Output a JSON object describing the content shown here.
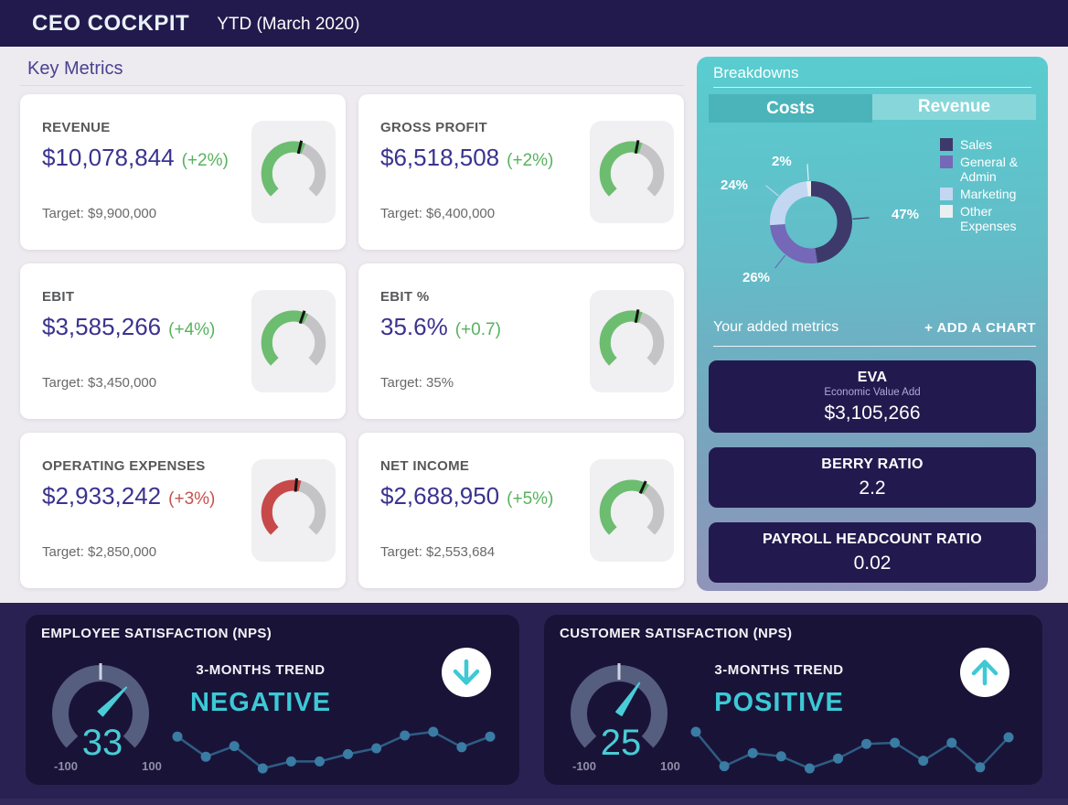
{
  "header": {
    "title": "CEO COCKPIT",
    "subtitle": "YTD (March 2020)"
  },
  "key_metrics": {
    "heading": "Key Metrics",
    "cards": [
      {
        "label": "REVENUE",
        "value": "$10,078,844",
        "change": "(+2%)",
        "change_color": "#57b25e",
        "target": "Target: $9,900,000",
        "gauge_color": "#6cbd70",
        "gauge_fill": 0.58
      },
      {
        "label": "GROSS PROFIT",
        "value": "$6,518,508",
        "change": "(+2%)",
        "change_color": "#57b25e",
        "target": "Target: $6,400,000",
        "gauge_color": "#6cbd70",
        "gauge_fill": 0.57
      },
      {
        "label": "EBIT",
        "value": "$3,585,266",
        "change": "(+4%)",
        "change_color": "#57b25e",
        "target": "Target: $3,450,000",
        "gauge_color": "#6cbd70",
        "gauge_fill": 0.6
      },
      {
        "label": "EBIT %",
        "value": "35.6%",
        "change": "(+0.7)",
        "change_color": "#57b25e",
        "target": "Target: 35%",
        "gauge_color": "#6cbd70",
        "gauge_fill": 0.57
      },
      {
        "label": "OPERATING EXPENSES",
        "value": "$2,933,242",
        "change": "(+3%)",
        "change_color": "#c7504c",
        "target": "Target: $2,850,000",
        "gauge_color": "#c8494a",
        "gauge_fill": 0.55
      },
      {
        "label": "NET INCOME",
        "value": "$2,688,950",
        "change": "(+5%)",
        "change_color": "#57b25e",
        "target": "Target: $2,553,684",
        "gauge_color": "#6cbd70",
        "gauge_fill": 0.62
      }
    ]
  },
  "breakdowns": {
    "title": "Breakdowns",
    "tabs": [
      {
        "label": "Costs"
      },
      {
        "label": "Revenue"
      }
    ],
    "active_tab": "Costs",
    "added_metrics_label": "Your added metrics",
    "add_chart_button": "+ ADD A CHART",
    "metric_cards": [
      {
        "title": "EVA",
        "subtitle": "Economic Value Add",
        "value": "$3,105,266"
      },
      {
        "title": "BERRY RATIO",
        "subtitle": "",
        "value": "2.2"
      },
      {
        "title": "PAYROLL HEADCOUNT RATIO",
        "subtitle": "",
        "value": "0.02"
      }
    ]
  },
  "nps_panels": [
    {
      "title": "EMPLOYEE SATISFACTION (NPS)",
      "value": 33,
      "min_label": "-100",
      "max_label": "100",
      "trend_label": "3-MONTHS TREND",
      "trend": "NEGATIVE",
      "direction": "down"
    },
    {
      "title": "CUSTOMER SATISFACTION (NPS)",
      "value": 25,
      "min_label": "-100",
      "max_label": "100",
      "trend_label": "3-MONTHS TREND",
      "trend": "POSITIVE",
      "direction": "up"
    }
  ],
  "chart_data": [
    {
      "type": "pie",
      "title": "Costs breakdown (donut)",
      "donut": true,
      "unit": "%",
      "labels": [
        "Sales",
        "General & Admin",
        "Marketing",
        "Other Expenses"
      ],
      "values": [
        47,
        26,
        24,
        2
      ],
      "colors": [
        "#3d3a6b",
        "#7568b8",
        "#c3d7f2",
        "#eceff1"
      ],
      "legend_position": "right"
    },
    {
      "type": "line",
      "title": "Employee satisfaction 3-months trend sparkline",
      "x": [
        1,
        2,
        3,
        4,
        5,
        6,
        7,
        8,
        9,
        10,
        11,
        12
      ],
      "values": [
        87,
        32,
        61,
        0,
        19,
        19,
        39,
        55,
        90,
        100,
        58,
        87
      ],
      "note": "relative heights 0-100 read from pixels"
    },
    {
      "type": "line",
      "title": "Customer satisfaction 3-months trend sparkline",
      "x": [
        1,
        2,
        3,
        4,
        5,
        6,
        7,
        8,
        9,
        10,
        11,
        12
      ],
      "values": [
        100,
        6,
        42,
        33,
        0,
        27,
        67,
        70,
        21,
        70,
        3,
        85
      ],
      "note": "relative heights 0-100 read from pixels"
    },
    {
      "type": "gauge",
      "title": "Employee NPS gauge",
      "min": -100,
      "max": 100,
      "value": 33
    },
    {
      "type": "gauge",
      "title": "Customer NPS gauge",
      "min": -100,
      "max": 100,
      "value": 25
    }
  ],
  "colors": {
    "header_bg": "#221a4c",
    "panel_teal_top": "#59cdd0",
    "panel_bottom": "#9192ba",
    "dark_card": "#221a4e",
    "bottom_bg": "#2a2153",
    "nps_card_bg": "#1a1338",
    "accent_teal": "#3ec9d4",
    "positive_green": "#57b25e",
    "negative_red": "#c8494a",
    "value_indigo": "#3a338f",
    "gauge_gray": "#c4c4c6",
    "nps_arc": "#565e80"
  }
}
